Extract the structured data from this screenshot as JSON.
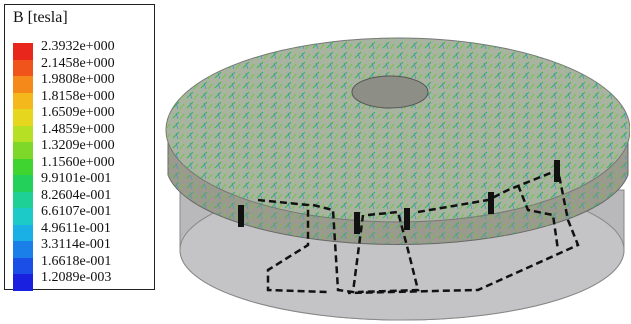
{
  "legend": {
    "title": "B [tesla]",
    "labels": [
      "2.3932e+000",
      "2.1458e+000",
      "1.9808e+000",
      "1.8158e+000",
      "1.6509e+000",
      "1.4859e+000",
      "1.3209e+000",
      "1.1560e+000",
      "9.9101e-001",
      "8.2604e-001",
      "6.6107e-001",
      "4.9611e-001",
      "3.3114e-001",
      "1.6618e-001",
      "1.2089e-003"
    ]
  }
}
